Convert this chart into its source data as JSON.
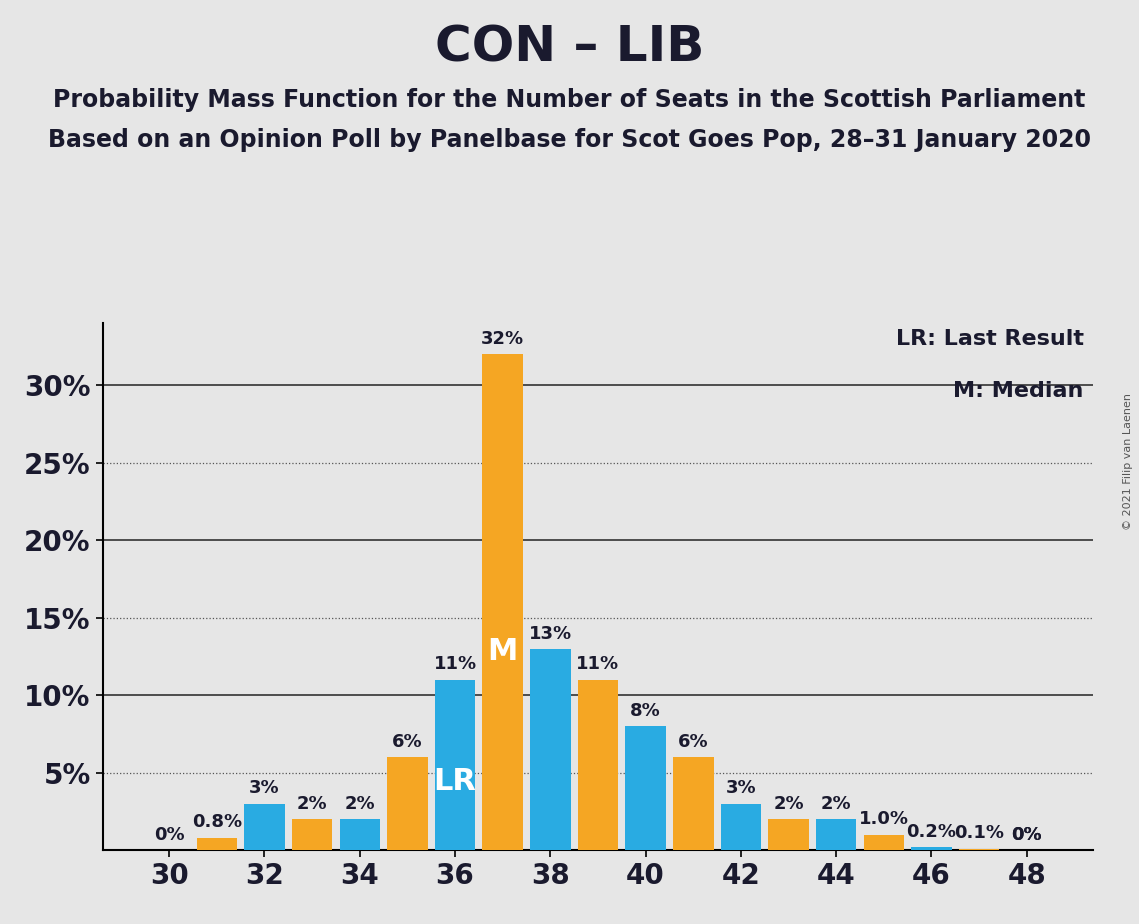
{
  "title": "CON – LIB",
  "subtitle1": "Probability Mass Function for the Number of Seats in the Scottish Parliament",
  "subtitle2": "Based on an Opinion Poll by Panelbase for Scot Goes Pop, 28–31 January 2020",
  "copyright": "© 2021 Filip van Laenen",
  "legend_lr": "LR: Last Result",
  "legend_m": "M: Median",
  "background_color": "#e6e6e6",
  "blue_color": "#29abe2",
  "orange_color": "#f5a623",
  "title_color": "#1a1a2e",
  "seats": [
    30,
    31,
    32,
    33,
    34,
    35,
    36,
    37,
    38,
    39,
    40,
    41,
    42,
    43,
    44,
    45,
    46,
    47,
    48
  ],
  "blue_values": [
    0.0,
    0.0,
    3.0,
    0.0,
    2.0,
    0.0,
    11.0,
    0.0,
    13.0,
    0.0,
    8.0,
    0.0,
    3.0,
    0.0,
    2.0,
    0.0,
    0.2,
    0.0,
    0.0
  ],
  "orange_values": [
    0.0,
    0.8,
    0.0,
    2.0,
    0.0,
    6.0,
    0.0,
    32.0,
    0.0,
    11.0,
    0.0,
    6.0,
    0.0,
    2.0,
    0.0,
    1.0,
    0.0,
    0.1,
    0.0
  ],
  "blue_labels": [
    "0%",
    "",
    "3%",
    "",
    "2%",
    "",
    "11%",
    "",
    "13%",
    "",
    "8%",
    "",
    "3%",
    "",
    "2%",
    "",
    "0.2%",
    "",
    "0%"
  ],
  "orange_labels": [
    "",
    "0.8%",
    "",
    "2%",
    "",
    "6%",
    "",
    "32%",
    "",
    "11%",
    "",
    "6%",
    "",
    "2%",
    "",
    "1.0%",
    "",
    "0.1%",
    "0%"
  ],
  "show_blue_zero": [
    true,
    false,
    true,
    false,
    true,
    false,
    true,
    false,
    true,
    false,
    true,
    false,
    true,
    false,
    true,
    false,
    true,
    false,
    true
  ],
  "show_orange_zero": [
    false,
    true,
    false,
    true,
    false,
    true,
    false,
    true,
    false,
    true,
    false,
    true,
    false,
    true,
    false,
    true,
    false,
    true,
    false
  ],
  "lr_seat": 36,
  "median_seat": 37,
  "xlim": [
    28.6,
    49.4
  ],
  "ylim": [
    0,
    34
  ],
  "ytick_vals": [
    5,
    10,
    15,
    20,
    25,
    30
  ],
  "ytick_labels": [
    "5%",
    "10%",
    "15%",
    "20%",
    "25%",
    "30%"
  ],
  "dotted_yticks": [
    5,
    15,
    25
  ],
  "solid_yticks": [
    10,
    20,
    30
  ],
  "xticks": [
    30,
    32,
    34,
    36,
    38,
    40,
    42,
    44,
    46,
    48
  ],
  "bar_width": 0.85,
  "title_fontsize": 36,
  "subtitle_fontsize": 17,
  "label_fontsize": 13,
  "tick_fontsize": 20,
  "annot_fontsize": 22,
  "legend_fontsize": 16
}
